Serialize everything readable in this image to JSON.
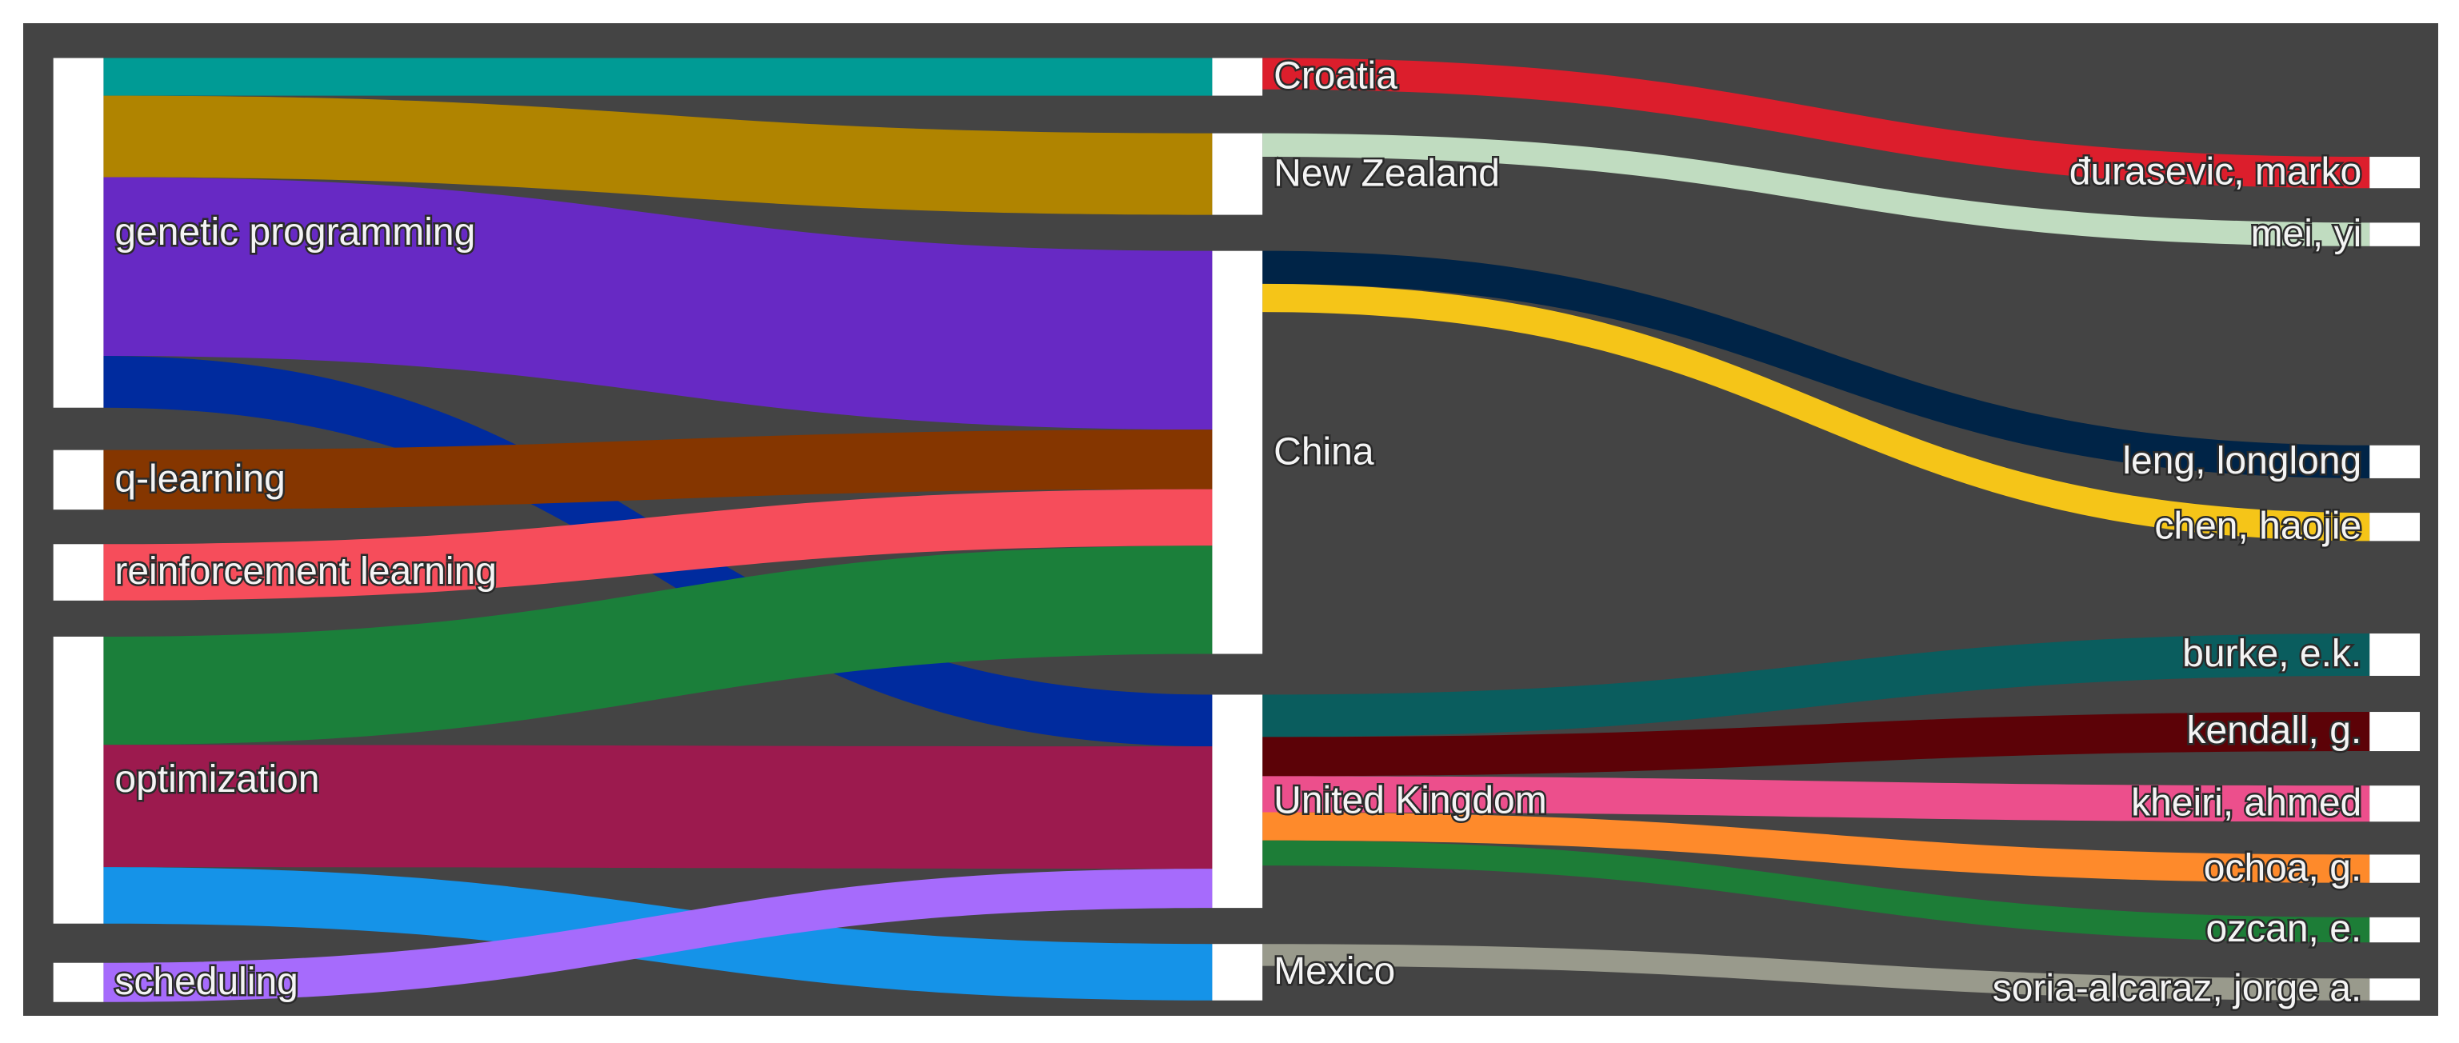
{
  "chart_data": {
    "type": "sankey",
    "nodes": [
      {
        "label": "genetic programming"
      },
      {
        "label": "q-learning"
      },
      {
        "label": "reinforcement learning"
      },
      {
        "label": "optimization"
      },
      {
        "label": "scheduling"
      },
      {
        "label": "Croatia"
      },
      {
        "label": "New Zealand"
      },
      {
        "label": "China"
      },
      {
        "label": "United Kingdom"
      },
      {
        "label": "Mexico"
      },
      {
        "label": "đurasevic, marko"
      },
      {
        "label": "mei, yi"
      },
      {
        "label": "leng, longlong"
      },
      {
        "label": "chen, haojie"
      },
      {
        "label": "burke, e.k."
      },
      {
        "label": "kendall, g."
      },
      {
        "label": "kheiri, ahmed"
      },
      {
        "label": "ochoa, g."
      },
      {
        "label": "ozcan, e."
      },
      {
        "label": "soria-alcaraz, jorge a."
      }
    ],
    "links": [
      {
        "source": 0,
        "target": 5,
        "value": 24,
        "color": "#009b95"
      },
      {
        "source": 0,
        "target": 6,
        "value": 52,
        "color": "#b08400"
      },
      {
        "source": 0,
        "target": 7,
        "value": 114,
        "color": "#6729c4"
      },
      {
        "source": 0,
        "target": 8,
        "value": 33,
        "color": "#002b9e"
      },
      {
        "source": 1,
        "target": 7,
        "value": 38,
        "color": "#853600"
      },
      {
        "source": 2,
        "target": 7,
        "value": 36,
        "color": "#f64d5b"
      },
      {
        "source": 3,
        "target": 7,
        "value": 69,
        "color": "#1b7f3a"
      },
      {
        "source": 3,
        "target": 8,
        "value": 78,
        "color": "#9c1a4e"
      },
      {
        "source": 3,
        "target": 9,
        "value": 36,
        "color": "#1593e8"
      },
      {
        "source": 4,
        "target": 8,
        "value": 25,
        "color": "#a66bfc"
      },
      {
        "source": 5,
        "target": 10,
        "value": 20,
        "color": "#dc1e2c"
      },
      {
        "source": 6,
        "target": 11,
        "value": 15,
        "color": "#c0dcc0"
      },
      {
        "source": 7,
        "target": 12,
        "value": 21,
        "color": "#002447"
      },
      {
        "source": 7,
        "target": 13,
        "value": 18,
        "color": "#f5c518"
      },
      {
        "source": 8,
        "target": 14,
        "value": 27,
        "color": "#0a5d5e"
      },
      {
        "source": 8,
        "target": 15,
        "value": 25,
        "color": "#5c0207"
      },
      {
        "source": 8,
        "target": 16,
        "value": 23,
        "color": "#ec4f8c"
      },
      {
        "source": 8,
        "target": 17,
        "value": 18,
        "color": "#fe8a2b"
      },
      {
        "source": 8,
        "target": 18,
        "value": 16,
        "color": "#1d7d37"
      },
      {
        "source": 9,
        "target": 19,
        "value": 14,
        "color": "#999a8c"
      }
    ]
  }
}
